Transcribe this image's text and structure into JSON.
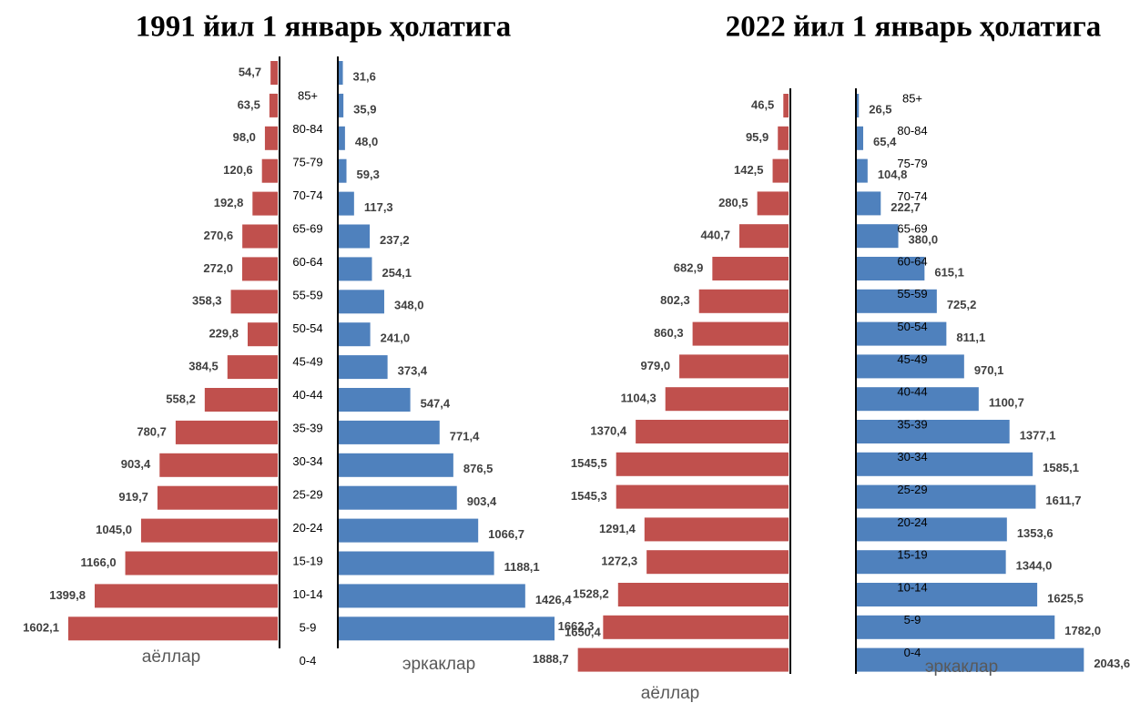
{
  "chart_data": [
    {
      "type": "pyramid",
      "title": "1991 йил 1 январь ҳолатига",
      "categories": [
        "85+",
        "80-84",
        "75-79",
        "70-74",
        "65-69",
        "60-64",
        "55-59",
        "50-54",
        "45-49",
        "40-44",
        "35-39",
        "30-34",
        "25-29",
        "20-24",
        "15-19",
        "10-14",
        "5-9",
        "0-4"
      ],
      "series": [
        {
          "name": "аёллар",
          "color": "#c0504d",
          "values": [
            54.7,
            63.5,
            98.0,
            120.6,
            192.8,
            270.6,
            272.0,
            358.3,
            229.8,
            384.5,
            558.2,
            780.7,
            903.4,
            919.7,
            1045.0,
            1166.0,
            1399.8,
            1602.1
          ],
          "value_labels": [
            "54,7",
            "63,5",
            "98,0",
            "120,6",
            "192,8",
            "270,6",
            "272,0",
            "358,3",
            "229,8",
            "384,5",
            "558,2",
            "780,7",
            "903,4",
            "919,7",
            "1045,0",
            "1166,0",
            "1399,8",
            "1602,1"
          ]
        },
        {
          "name": "эркаклар",
          "color": "#4f81bd",
          "values": [
            31.6,
            35.9,
            48.0,
            59.3,
            117.3,
            237.2,
            254.1,
            348.0,
            241.0,
            373.4,
            547.4,
            771.4,
            876.5,
            903.4,
            1066.7,
            1188.1,
            1426.4,
            1650.4
          ],
          "value_labels": [
            "31,6",
            "35,9",
            "48,0",
            "59,3",
            "117,3",
            "237,2",
            "254,1",
            "348,0",
            "241,0",
            "373,4",
            "547,4",
            "771,4",
            "876,5",
            "903,4",
            "1066,7",
            "1188,1",
            "1426,4",
            "1650,4"
          ]
        }
      ]
    },
    {
      "type": "pyramid",
      "title": "2022 йил 1 январь ҳолатига",
      "categories": [
        "85+",
        "80-84",
        "75-79",
        "70-74",
        "65-69",
        "60-64",
        "55-59",
        "50-54",
        "45-49",
        "40-44",
        "35-39",
        "30-34",
        "25-29",
        "20-24",
        "15-19",
        "10-14",
        "5-9",
        "0-4"
      ],
      "series": [
        {
          "name": "аёллар",
          "color": "#c0504d",
          "values": [
            46.5,
            95.9,
            142.5,
            280.5,
            440.7,
            682.9,
            802.3,
            860.3,
            979.0,
            1104.3,
            1370.4,
            1545.5,
            1545.3,
            1291.4,
            1272.3,
            1528.2,
            1662.3,
            1888.7
          ],
          "value_labels": [
            "46,5",
            "95,9",
            "142,5",
            "280,5",
            "440,7",
            "682,9",
            "802,3",
            "860,3",
            "979,0",
            "1104,3",
            "1370,4",
            "1545,5",
            "1545,3",
            "1291,4",
            "1272,3",
            "1528,2",
            "1662,3",
            "1888,7"
          ]
        },
        {
          "name": "эркаклар",
          "color": "#4f81bd",
          "values": [
            26.5,
            65.4,
            104.8,
            222.7,
            380.0,
            615.1,
            725.2,
            811.1,
            970.1,
            1100.7,
            1377.1,
            1585.1,
            1611.7,
            1353.6,
            1344.0,
            1625.5,
            1782.0,
            2043.6
          ],
          "value_labels": [
            "26,5",
            "65,4",
            "104,8",
            "222,7",
            "380,0",
            "615,1",
            "725,2",
            "811,1",
            "970,1",
            "1100,7",
            "1377,1",
            "1585,1",
            "1611,7",
            "1353,6",
            "1344,0",
            "1625,5",
            "1782,0",
            "2043,6"
          ]
        }
      ]
    }
  ]
}
